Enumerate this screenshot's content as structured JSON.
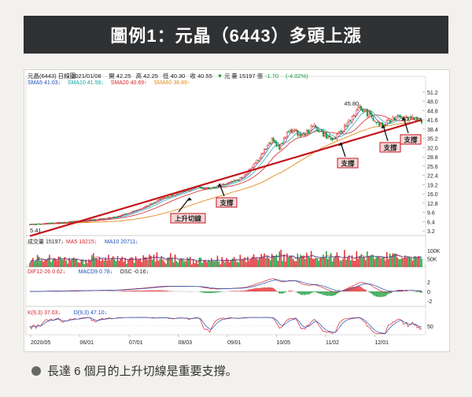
{
  "title": "圖例1：元晶（6443）多頭上漲",
  "caption": "長達 6 個月的上升切線是重要支撐。",
  "info_line": {
    "stock": "元晶(6443)",
    "period": "日線圖",
    "date": "2021/01/08",
    "open": "開 42.25",
    "high": "高 42.25",
    "low": "低 40.30",
    "close": "收 40.55",
    "change_mark": "▼",
    "unit": "元",
    "volume": "量 15197 張",
    "change": "-1.70",
    "pct": "(-4.02%)"
  },
  "ma_legend": [
    {
      "label": "SMA5 41.03↓",
      "color": "#1f4fb8"
    },
    {
      "label": "SMA10 41.59↓",
      "color": "#12a3a3"
    },
    {
      "label": "SMA20 40.69↑",
      "color": "#d6242b"
    },
    {
      "label": "SMA60 38.89↑",
      "color": "#e08a1e"
    }
  ],
  "vol_legend": [
    {
      "label": "成交量 15197↓",
      "color": "#222222"
    },
    {
      "label": "MA5 18215↓",
      "color": "#d6242b"
    },
    {
      "label": "MA10 20711↓",
      "color": "#1f4fb8"
    }
  ],
  "macd_legend": [
    {
      "label": "DIF12-26 0.62↓",
      "color": "#d6242b"
    },
    {
      "label": "MACD9 0.78↓",
      "color": "#1f4fb8"
    },
    {
      "label": "OSC -0.16↓",
      "color": "#222222"
    }
  ],
  "kd_legend": [
    {
      "label": "K(9,3) 37.03↓",
      "color": "#d6242b"
    },
    {
      "label": "D(9,3) 47.10↓",
      "color": "#1f4fb8"
    }
  ],
  "annotations": {
    "uptrend": "上升切線",
    "support": "支撐",
    "high_label": "45.80",
    "low_label": "5.41"
  },
  "colors": {
    "up": "#e0262a",
    "down": "#169c3a",
    "trend": "#c4161c"
  },
  "chart_data": {
    "type": "candlestick",
    "x_labels": [
      "2020/05",
      "06/01",
      "07/01",
      "08/03",
      "09/01",
      "10/05",
      "11/02",
      "12/01"
    ],
    "price_ticks": [
      "51.2",
      "48.0",
      "44.8",
      "41.6",
      "38.4",
      "35.2",
      "32.0",
      "28.8",
      "25.6",
      "22.4",
      "19.2",
      "16.0",
      "12.8",
      "9.6",
      "6.4",
      "3.2"
    ],
    "ylim": [
      1.6,
      52.8
    ],
    "volume_ticks": [
      "100K",
      "50K"
    ],
    "macd_ticks": [
      "2",
      "0",
      "-2"
    ],
    "kd_ticks": [
      "50"
    ],
    "price_anchors": [
      [
        0,
        5.4
      ],
      [
        25,
        6.3
      ],
      [
        45,
        7.2
      ],
      [
        58,
        8.2
      ],
      [
        72,
        10.5
      ],
      [
        85,
        13.8
      ],
      [
        95,
        15.8
      ],
      [
        110,
        18.3
      ],
      [
        120,
        18.0
      ],
      [
        130,
        19.8
      ],
      [
        140,
        21.5
      ],
      [
        150,
        27.5
      ],
      [
        160,
        34.5
      ],
      [
        165,
        32.0
      ],
      [
        172,
        38.5
      ],
      [
        180,
        36.0
      ],
      [
        188,
        39.5
      ],
      [
        195,
        36.2
      ],
      [
        200,
        34.6
      ],
      [
        205,
        36.8
      ],
      [
        212,
        42.0
      ],
      [
        218,
        45.8
      ],
      [
        224,
        43.5
      ],
      [
        230,
        40.2
      ],
      [
        234,
        39.5
      ],
      [
        238,
        41.3
      ],
      [
        244,
        43.5
      ],
      [
        248,
        42.0
      ],
      [
        252,
        42.6
      ],
      [
        256,
        42.2
      ],
      [
        259,
        40.55
      ]
    ],
    "trend_line": [
      [
        0,
        1.4
      ],
      [
        259,
        41.6
      ]
    ],
    "n_bars": 260
  }
}
